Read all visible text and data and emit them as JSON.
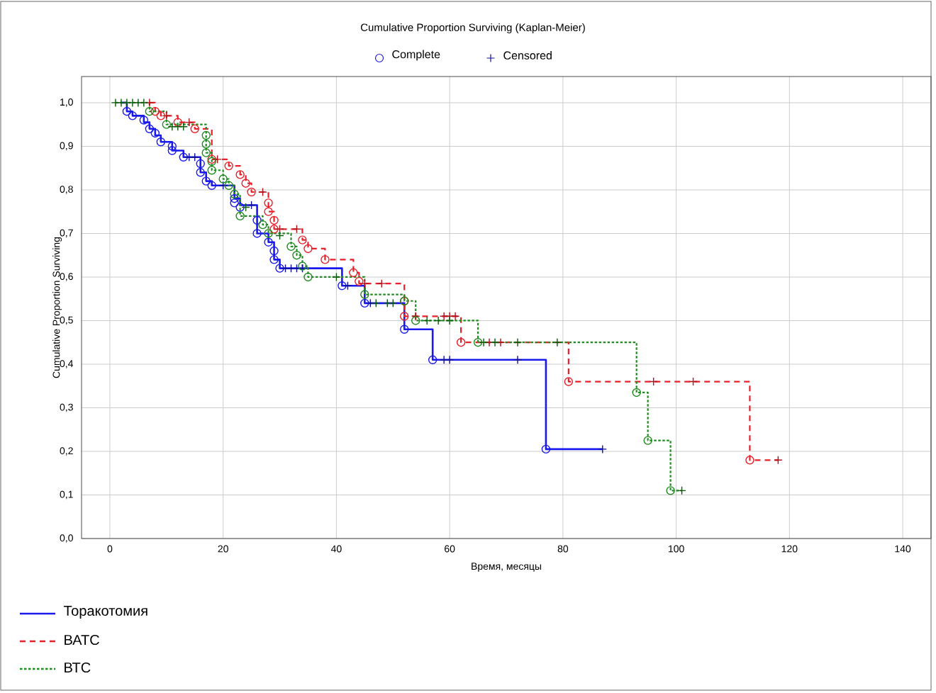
{
  "chart_data": {
    "type": "step",
    "title": "Cumulative Proportion Surviving (Kaplan-Meier)",
    "xlabel": "Время, месяцы",
    "ylabel": "Cumulative Proportion Surviving",
    "xlim": [
      -5,
      145
    ],
    "ylim": [
      0,
      1.06
    ],
    "xticks": [
      0,
      20,
      40,
      60,
      80,
      100,
      120,
      140
    ],
    "yticks": [
      {
        "value": 0,
        "label": "0,0"
      },
      {
        "value": 0.1,
        "label": "0,1"
      },
      {
        "value": 0.2,
        "label": "0,2"
      },
      {
        "value": 0.3,
        "label": "0,3"
      },
      {
        "value": 0.4,
        "label": "0,4"
      },
      {
        "value": 0.5,
        "label": "0,5"
      },
      {
        "value": 0.6,
        "label": "0,6"
      },
      {
        "value": 0.7,
        "label": "0,7"
      },
      {
        "value": 0.8,
        "label": "0,8"
      },
      {
        "value": 0.9,
        "label": "0,9"
      },
      {
        "value": 1,
        "label": "1,0"
      }
    ],
    "grid": true,
    "legend": "bottom left",
    "series": [
      {
        "name": "Торакотомия",
        "color": "#1a1aee",
        "line_style": "solid",
        "x": [
          2,
          3,
          4,
          6,
          7,
          8,
          9,
          11,
          13,
          16,
          17,
          18,
          22,
          23,
          26,
          28,
          29,
          30,
          41,
          45,
          52,
          57,
          77,
          87
        ],
        "values": [
          1.0,
          0.98,
          0.97,
          0.955,
          0.94,
          0.925,
          0.91,
          0.89,
          0.875,
          0.84,
          0.82,
          0.81,
          0.78,
          0.765,
          0.7,
          0.68,
          0.64,
          0.62,
          0.58,
          0.54,
          0.48,
          0.41,
          0.205,
          0.205
        ]
      },
      {
        "name": "ВАТС",
        "color": "#e8202a",
        "line_style": "dashed",
        "x": [
          7,
          8,
          9,
          12,
          15,
          18,
          21,
          23,
          24,
          25,
          28,
          29,
          34,
          35,
          38,
          43,
          44,
          52,
          62,
          81,
          113,
          118
        ],
        "values": [
          1.0,
          0.98,
          0.97,
          0.955,
          0.94,
          0.87,
          0.855,
          0.835,
          0.815,
          0.795,
          0.75,
          0.71,
          0.685,
          0.665,
          0.64,
          0.61,
          0.585,
          0.51,
          0.45,
          0.36,
          0.18,
          0.18
        ]
      },
      {
        "name": "ВТС",
        "color": "#1e8c1e",
        "line_style": "dotted",
        "x": [
          1,
          7,
          10,
          17,
          18,
          20,
          21,
          22,
          23,
          27,
          28,
          32,
          33,
          34,
          35,
          45,
          52,
          54,
          65,
          93,
          95,
          99,
          101
        ],
        "values": [
          1.0,
          0.98,
          0.95,
          0.885,
          0.845,
          0.825,
          0.81,
          0.79,
          0.74,
          0.72,
          0.7,
          0.67,
          0.65,
          0.625,
          0.6,
          0.56,
          0.545,
          0.5,
          0.45,
          0.335,
          0.225,
          0.11,
          0.11
        ]
      },
      {
        "name": "Complete",
        "color": "#1a1aee",
        "type": "scatter",
        "marker": "circle",
        "x": [
          3,
          4,
          6,
          7,
          8,
          9,
          11,
          11,
          13,
          16,
          16,
          17,
          18,
          22,
          22,
          23,
          26,
          26,
          28,
          29,
          29,
          30,
          41,
          45,
          52,
          57,
          77
        ],
        "values": [
          0.98,
          0.97,
          0.96,
          0.94,
          0.93,
          0.91,
          0.9,
          0.89,
          0.875,
          0.86,
          0.84,
          0.82,
          0.81,
          0.78,
          0.77,
          0.76,
          0.73,
          0.7,
          0.68,
          0.66,
          0.64,
          0.62,
          0.58,
          0.54,
          0.48,
          0.41,
          0.205
        ]
      },
      {
        "name": "Censored",
        "color": "#10109a",
        "type": "scatter",
        "marker": "cross",
        "x": [
          14,
          15,
          20,
          25,
          31,
          32,
          33,
          34,
          42,
          46,
          59,
          60,
          72,
          87
        ],
        "values": [
          0.875,
          0.875,
          0.81,
          0.765,
          0.62,
          0.62,
          0.62,
          0.62,
          0.58,
          0.54,
          0.41,
          0.41,
          0.41,
          0.205
        ]
      },
      {
        "color": "#e8202a",
        "type": "scatter",
        "marker": "circle",
        "x": [
          8,
          9,
          12,
          15,
          18,
          21,
          23,
          24,
          25,
          28,
          28,
          29,
          29,
          34,
          35,
          38,
          43,
          44,
          52,
          52,
          62,
          81,
          113
        ],
        "values": [
          0.98,
          0.97,
          0.955,
          0.94,
          0.87,
          0.855,
          0.835,
          0.815,
          0.795,
          0.77,
          0.75,
          0.73,
          0.71,
          0.685,
          0.665,
          0.64,
          0.61,
          0.59,
          0.545,
          0.51,
          0.45,
          0.36,
          0.18
        ]
      },
      {
        "color": "#b0101a",
        "type": "scatter",
        "marker": "cross",
        "x": [
          7,
          10,
          14,
          19,
          27,
          30,
          33,
          45,
          48,
          54,
          59,
          60,
          61,
          67,
          69,
          96,
          103,
          118
        ],
        "values": [
          1.0,
          0.97,
          0.955,
          0.87,
          0.795,
          0.71,
          0.71,
          0.585,
          0.585,
          0.51,
          0.51,
          0.51,
          0.51,
          0.45,
          0.45,
          0.36,
          0.36,
          0.18
        ]
      },
      {
        "color": "#1e8c1e",
        "type": "scatter",
        "marker": "circle",
        "x": [
          7,
          10,
          17,
          17,
          17,
          18,
          18,
          20,
          21,
          22,
          23,
          27,
          28,
          32,
          33,
          34,
          35,
          45,
          52,
          54,
          65,
          93,
          95,
          99
        ],
        "values": [
          0.98,
          0.95,
          0.925,
          0.905,
          0.885,
          0.865,
          0.845,
          0.825,
          0.81,
          0.79,
          0.74,
          0.72,
          0.7,
          0.67,
          0.65,
          0.625,
          0.6,
          0.56,
          0.545,
          0.5,
          0.45,
          0.335,
          0.225,
          0.11
        ]
      },
      {
        "color": "#0c5a0c",
        "type": "scatter",
        "marker": "cross",
        "x": [
          1,
          2,
          3,
          4,
          5,
          6,
          11,
          12,
          13,
          24,
          30,
          40,
          47,
          49,
          50,
          56,
          58,
          60,
          66,
          68,
          72,
          79,
          101
        ],
        "values": [
          1.0,
          1.0,
          1.0,
          1.0,
          1.0,
          1.0,
          0.945,
          0.945,
          0.945,
          0.76,
          0.695,
          0.6,
          0.54,
          0.54,
          0.54,
          0.5,
          0.5,
          0.5,
          0.45,
          0.45,
          0.45,
          0.45,
          0.11
        ]
      }
    ]
  }
}
